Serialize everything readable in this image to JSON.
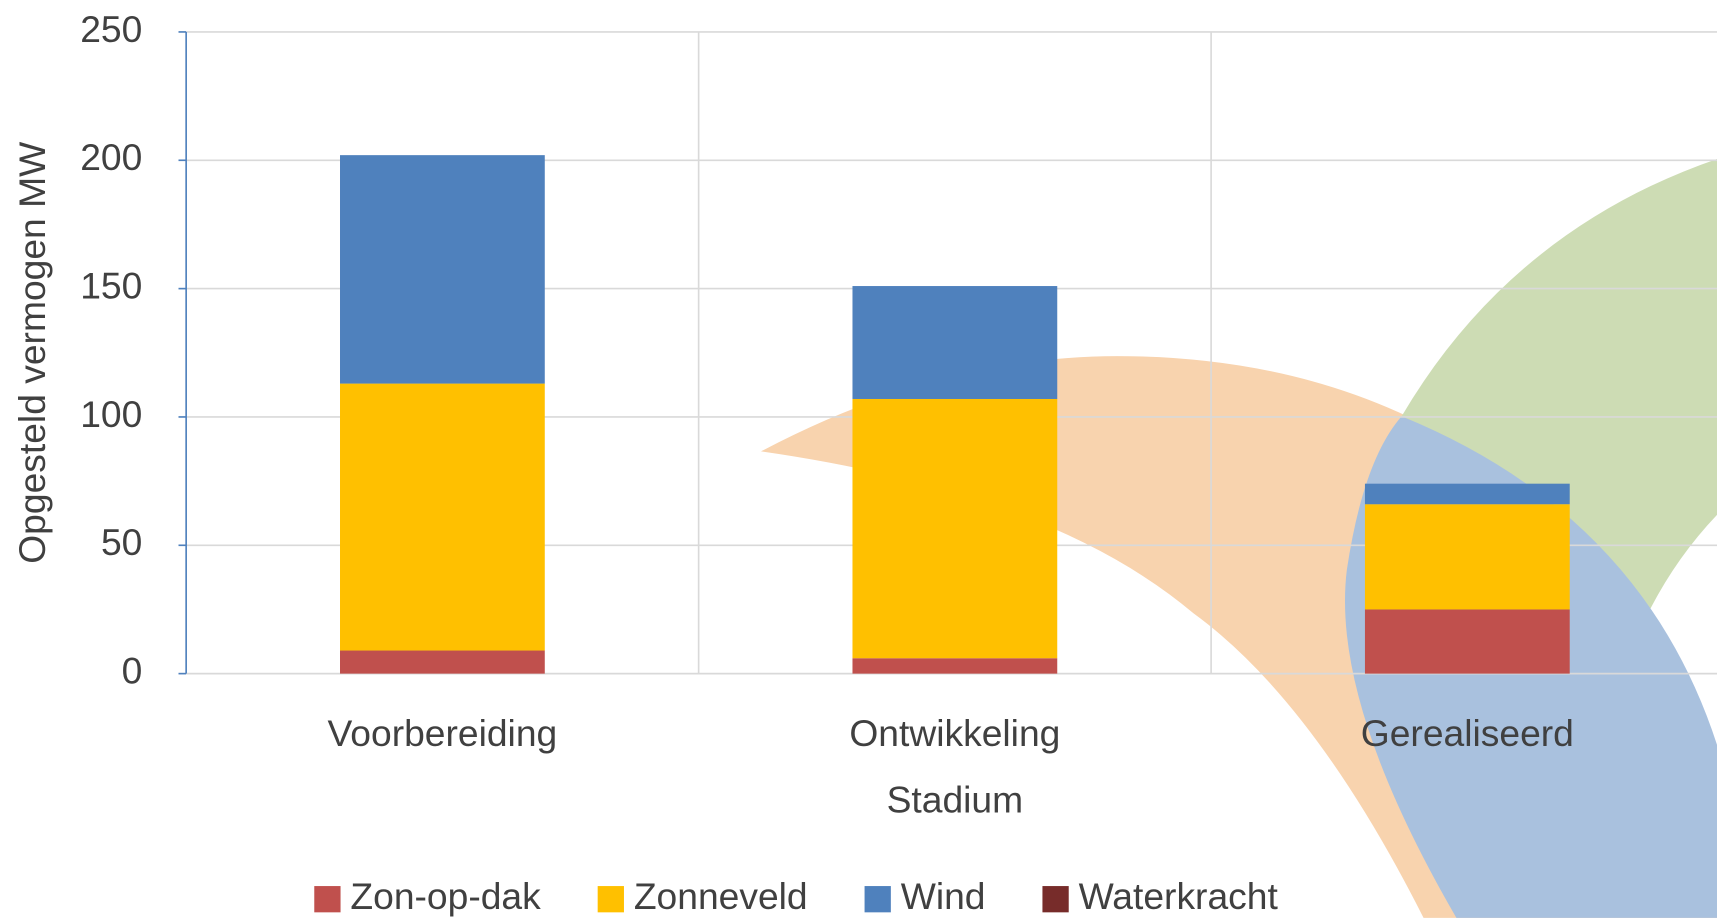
{
  "chart_data": {
    "type": "stacked_bar",
    "y_axis_label": "Opgesteld vermogen  MW",
    "x_axis_label": "Stadium",
    "categories": [
      "Voorbereiding",
      "Ontwikkeling",
      "Gerealiseerd"
    ],
    "series": [
      {
        "name": "Zon-op-dak",
        "color": "#c0504d",
        "values": [
          9,
          6,
          25
        ]
      },
      {
        "name": "Zonneveld",
        "color": "#ffc000",
        "values": [
          104,
          101,
          41
        ]
      },
      {
        "name": "Wind",
        "color": "#4f81bd",
        "values": [
          89,
          44,
          8
        ]
      },
      {
        "name": "Waterkracht",
        "color": "#772c2a",
        "values": [
          0,
          0,
          0
        ]
      }
    ],
    "ylim": [
      0,
      250
    ],
    "yticks": [
      0,
      50,
      100,
      150,
      200,
      250
    ],
    "grid": true,
    "legend": "bottom"
  }
}
